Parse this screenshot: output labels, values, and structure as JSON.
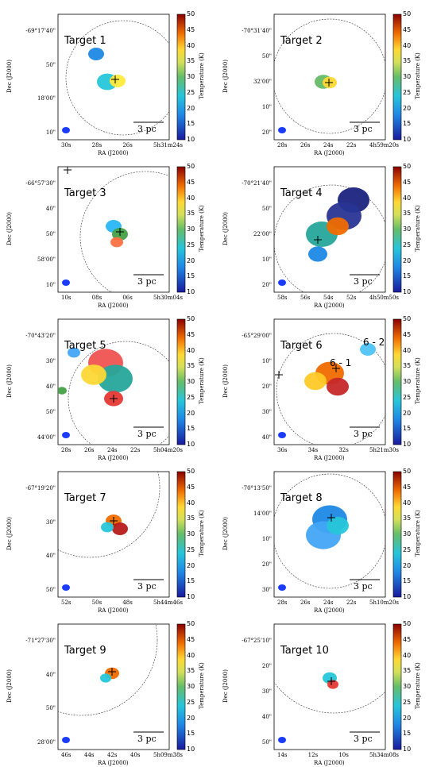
{
  "colorbar": {
    "label": "Temperature (K)",
    "ticks": [
      "10",
      "15",
      "20",
      "25",
      "30",
      "35",
      "40",
      "45",
      "50"
    ]
  },
  "axis": {
    "ra_label": "RA (J2000)",
    "dec_label": "Dec (J2000)"
  },
  "scale_bar_label": "3 pc",
  "panels": [
    {
      "title": "Target 1",
      "dec_ticks": [
        "-69°17'40\"",
        "50\"",
        "18'00\"",
        "10\""
      ],
      "ra_ticks": [
        "30s",
        "28s",
        "26s",
        "5h31m24s"
      ]
    },
    {
      "title": "Target 2",
      "dec_ticks": [
        "-70°31'40\"",
        "50\"",
        "32'00\"",
        "10\"",
        "20\""
      ],
      "ra_ticks": [
        "28s",
        "26s",
        "24s",
        "22s",
        "4h59m20s"
      ]
    },
    {
      "title": "Target 3",
      "dec_ticks": [
        "-66°57'30\"",
        "40\"",
        "50\"",
        "58'00\"",
        "10\""
      ],
      "ra_ticks": [
        "10s",
        "08s",
        "06s",
        "5h30m04s"
      ]
    },
    {
      "title": "Target 4",
      "dec_ticks": [
        "-70°21'40\"",
        "50\"",
        "22'00\"",
        "10\"",
        "20\""
      ],
      "ra_ticks": [
        "58s",
        "56s",
        "54s",
        "52s",
        "4h50m50s"
      ]
    },
    {
      "title": "Target 5",
      "dec_ticks": [
        "-70°43'20\"",
        "30\"",
        "40\"",
        "50\"",
        "44'00\""
      ],
      "ra_ticks": [
        "28s",
        "26s",
        "24s",
        "22s",
        "5h04m20s"
      ]
    },
    {
      "title": "Target 6",
      "dec_ticks": [
        "-65°29'00\"",
        "10\"",
        "20\"",
        "30\"",
        "40\""
      ],
      "ra_ticks": [
        "36s",
        "34s",
        "32s",
        "5h21m30s"
      ],
      "sub_labels": [
        "6 - 1",
        "6 - 2"
      ]
    },
    {
      "title": "Target 7",
      "dec_ticks": [
        "-67°19'20\"",
        "30\"",
        "40\"",
        "50\""
      ],
      "ra_ticks": [
        "52s",
        "50s",
        "48s",
        "5h44m46s"
      ]
    },
    {
      "title": "Target 8",
      "dec_ticks": [
        "-70°13'50\"",
        "14'00\"",
        "10\"",
        "20\"",
        "30\""
      ],
      "ra_ticks": [
        "28s",
        "26s",
        "24s",
        "22s",
        "5h10m20s"
      ]
    },
    {
      "title": "Target 9",
      "dec_ticks": [
        "-71°27'30\"",
        "40\"",
        "50\"",
        "28'00\""
      ],
      "ra_ticks": [
        "46s",
        "44s",
        "42s",
        "40s",
        "5h09m38s"
      ]
    },
    {
      "title": "Target 10",
      "dec_ticks": [
        "-67°25'10\"",
        "20\"",
        "30\"",
        "40\"",
        "50\""
      ],
      "ra_ticks": [
        "14s",
        "12s",
        "10s",
        "5h34m08s"
      ]
    }
  ]
}
